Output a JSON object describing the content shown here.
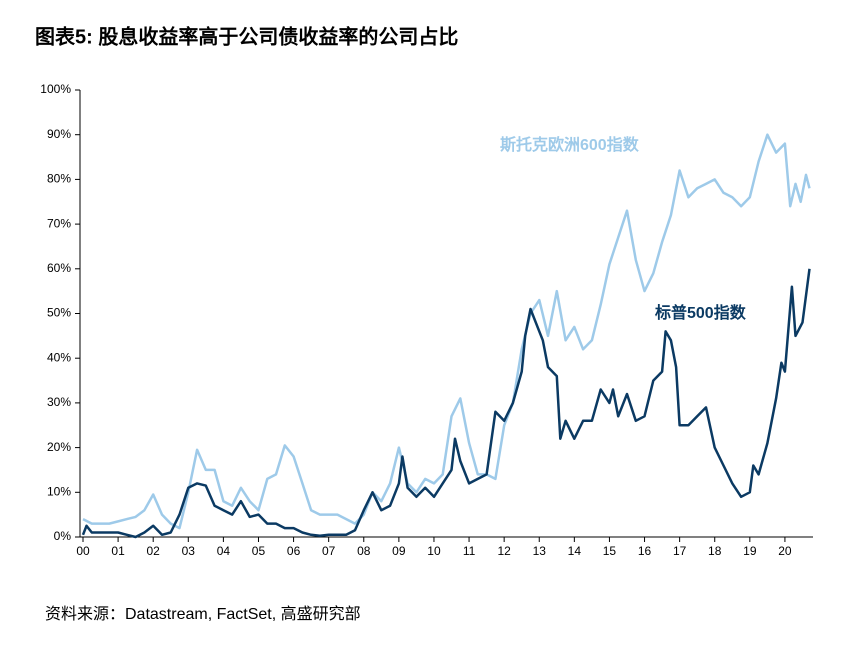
{
  "chart_data": {
    "type": "line",
    "title": "图表5: 股息收益率高于公司债收益率的公司占比",
    "source": "资料来源：Datastream, FactSet, 高盛研究部",
    "xlim": [
      2000,
      2020.8
    ],
    "xticks": [
      {
        "value": 2000,
        "label": "00"
      },
      {
        "value": 2001,
        "label": "01"
      },
      {
        "value": 2002,
        "label": "02"
      },
      {
        "value": 2003,
        "label": "03"
      },
      {
        "value": 2004,
        "label": "04"
      },
      {
        "value": 2005,
        "label": "05"
      },
      {
        "value": 2006,
        "label": "06"
      },
      {
        "value": 2007,
        "label": "07"
      },
      {
        "value": 2008,
        "label": "08"
      },
      {
        "value": 2009,
        "label": "09"
      },
      {
        "value": 2010,
        "label": "10"
      },
      {
        "value": 2011,
        "label": "11"
      },
      {
        "value": 2012,
        "label": "12"
      },
      {
        "value": 2013,
        "label": "13"
      },
      {
        "value": 2014,
        "label": "14"
      },
      {
        "value": 2015,
        "label": "15"
      },
      {
        "value": 2016,
        "label": "16"
      },
      {
        "value": 2017,
        "label": "17"
      },
      {
        "value": 2018,
        "label": "18"
      },
      {
        "value": 2019,
        "label": "19"
      },
      {
        "value": 2020,
        "label": "20"
      }
    ],
    "ylim": [
      0,
      100
    ],
    "yticks": [
      {
        "value": 0,
        "label": "0%"
      },
      {
        "value": 10,
        "label": "10%"
      },
      {
        "value": 20,
        "label": "20%"
      },
      {
        "value": 30,
        "label": "30%"
      },
      {
        "value": 40,
        "label": "40%"
      },
      {
        "value": 50,
        "label": "50%"
      },
      {
        "value": 60,
        "label": "60%"
      },
      {
        "value": 70,
        "label": "70%"
      },
      {
        "value": 80,
        "label": "80%"
      },
      {
        "value": 90,
        "label": "90%"
      },
      {
        "value": 100,
        "label": "100%"
      }
    ],
    "grid": false,
    "series": [
      {
        "name": "斯托克欧洲600指数",
        "color": "#9ecae9",
        "x": [
          2000,
          2000.25,
          2000.5,
          2000.75,
          2001,
          2001.25,
          2001.5,
          2001.75,
          2002,
          2002.25,
          2002.5,
          2002.75,
          2003,
          2003.25,
          2003.5,
          2003.75,
          2004,
          2004.25,
          2004.5,
          2004.75,
          2005,
          2005.25,
          2005.5,
          2005.75,
          2006,
          2006.25,
          2006.5,
          2006.75,
          2007,
          2007.25,
          2007.5,
          2007.75,
          2008,
          2008.25,
          2008.5,
          2008.75,
          2009,
          2009.25,
          2009.5,
          2009.75,
          2010,
          2010.25,
          2010.5,
          2010.75,
          2011,
          2011.25,
          2011.5,
          2011.75,
          2012,
          2012.25,
          2012.5,
          2012.75,
          2013,
          2013.25,
          2013.5,
          2013.75,
          2014,
          2014.25,
          2014.5,
          2014.75,
          2015,
          2015.25,
          2015.5,
          2015.75,
          2016,
          2016.25,
          2016.5,
          2016.75,
          2017,
          2017.25,
          2017.5,
          2017.75,
          2018,
          2018.25,
          2018.5,
          2018.75,
          2019,
          2019.25,
          2019.5,
          2019.75,
          2020,
          2020.15,
          2020.3,
          2020.45,
          2020.6,
          2020.7
        ],
        "values": [
          4,
          3,
          3,
          3,
          3.5,
          4,
          4.5,
          6,
          9.5,
          5,
          3,
          2,
          10,
          19.5,
          15,
          15,
          8,
          7,
          11,
          8,
          6,
          13,
          14,
          20.5,
          18,
          12,
          6,
          5,
          5,
          5,
          4,
          3,
          5,
          10,
          8,
          12,
          20,
          12,
          10,
          13,
          12,
          14,
          27,
          31,
          21,
          14,
          14,
          13,
          25,
          30,
          42,
          50,
          53,
          45,
          55,
          44,
          47,
          42,
          44,
          52,
          61,
          67,
          73,
          62,
          55,
          59,
          66,
          72,
          82,
          76,
          78,
          79,
          80,
          77,
          76,
          74,
          76,
          84,
          90,
          86,
          88,
          74,
          79,
          75,
          81,
          78
        ]
      },
      {
        "name": "标普500指数",
        "color": "#0b3a63",
        "x": [
          2000,
          2000.1,
          2000.25,
          2000.5,
          2000.75,
          2001,
          2001.25,
          2001.5,
          2001.75,
          2002,
          2002.25,
          2002.5,
          2002.75,
          2003,
          2003.25,
          2003.5,
          2003.75,
          2004,
          2004.25,
          2004.5,
          2004.75,
          2005,
          2005.25,
          2005.5,
          2005.75,
          2006,
          2006.25,
          2006.5,
          2006.75,
          2007,
          2007.25,
          2007.5,
          2007.75,
          2008,
          2008.25,
          2008.5,
          2008.75,
          2009,
          2009.1,
          2009.25,
          2009.5,
          2009.75,
          2010,
          2010.25,
          2010.5,
          2010.6,
          2010.75,
          2011,
          2011.25,
          2011.5,
          2011.75,
          2012,
          2012.25,
          2012.5,
          2012.6,
          2012.75,
          2013,
          2013.1,
          2013.25,
          2013.5,
          2013.6,
          2013.75,
          2014,
          2014.25,
          2014.5,
          2014.75,
          2015,
          2015.1,
          2015.25,
          2015.5,
          2015.75,
          2016,
          2016.25,
          2016.5,
          2016.6,
          2016.75,
          2016.9,
          2017,
          2017.25,
          2017.5,
          2017.75,
          2018,
          2018.25,
          2018.5,
          2018.75,
          2019,
          2019.1,
          2019.25,
          2019.5,
          2019.75,
          2019.9,
          2020,
          2020.2,
          2020.3,
          2020.5,
          2020.7
        ],
        "values": [
          0.5,
          2.5,
          1,
          1,
          1,
          1,
          0.5,
          0,
          1,
          2.5,
          0.5,
          1,
          5,
          11,
          12,
          11.5,
          7,
          6,
          5,
          8,
          4.5,
          5,
          3,
          3,
          2,
          2,
          1,
          0.5,
          0.3,
          0.5,
          0.5,
          0.5,
          1.5,
          6,
          10,
          6,
          7,
          12,
          18,
          11,
          9,
          11,
          9,
          12,
          15,
          22,
          17,
          12,
          13,
          14,
          28,
          26,
          30,
          37,
          45,
          51,
          46,
          44,
          38,
          36,
          22,
          26,
          22,
          26,
          26,
          33,
          30,
          33,
          27,
          32,
          26,
          27,
          35,
          37,
          46,
          44,
          38,
          25,
          25,
          27,
          29,
          20,
          16,
          12,
          9,
          10,
          16,
          14,
          21,
          31,
          39,
          37,
          56,
          45,
          48,
          60
        ]
      }
    ]
  }
}
